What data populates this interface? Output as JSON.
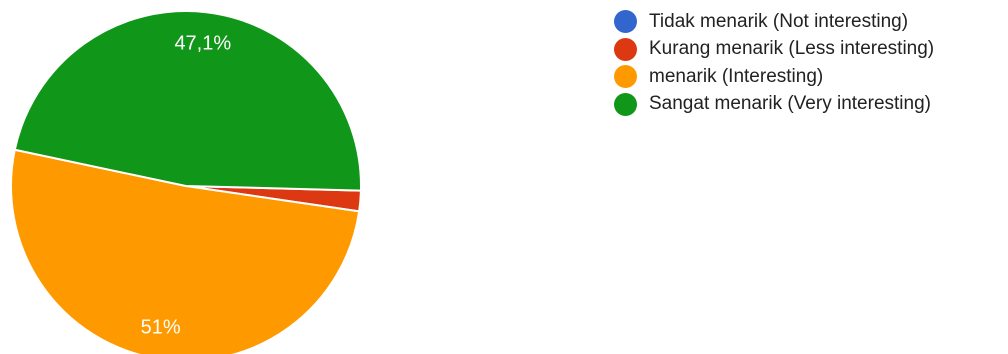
{
  "chart_data": {
    "type": "pie",
    "categories": [
      "Tidak menarik (Not interesting)",
      "Kurang menarik (Less interesting)",
      "menarik (Interesting)",
      "Sangat menarik (Very interesting)"
    ],
    "values": [
      0,
      1.9,
      51,
      47.1
    ],
    "value_labels": [
      "",
      "",
      "51%",
      "47,1%"
    ],
    "colors": [
      "#3366cc",
      "#dc3912",
      "#ff9900",
      "#109618"
    ],
    "legend": "right",
    "title": ""
  }
}
